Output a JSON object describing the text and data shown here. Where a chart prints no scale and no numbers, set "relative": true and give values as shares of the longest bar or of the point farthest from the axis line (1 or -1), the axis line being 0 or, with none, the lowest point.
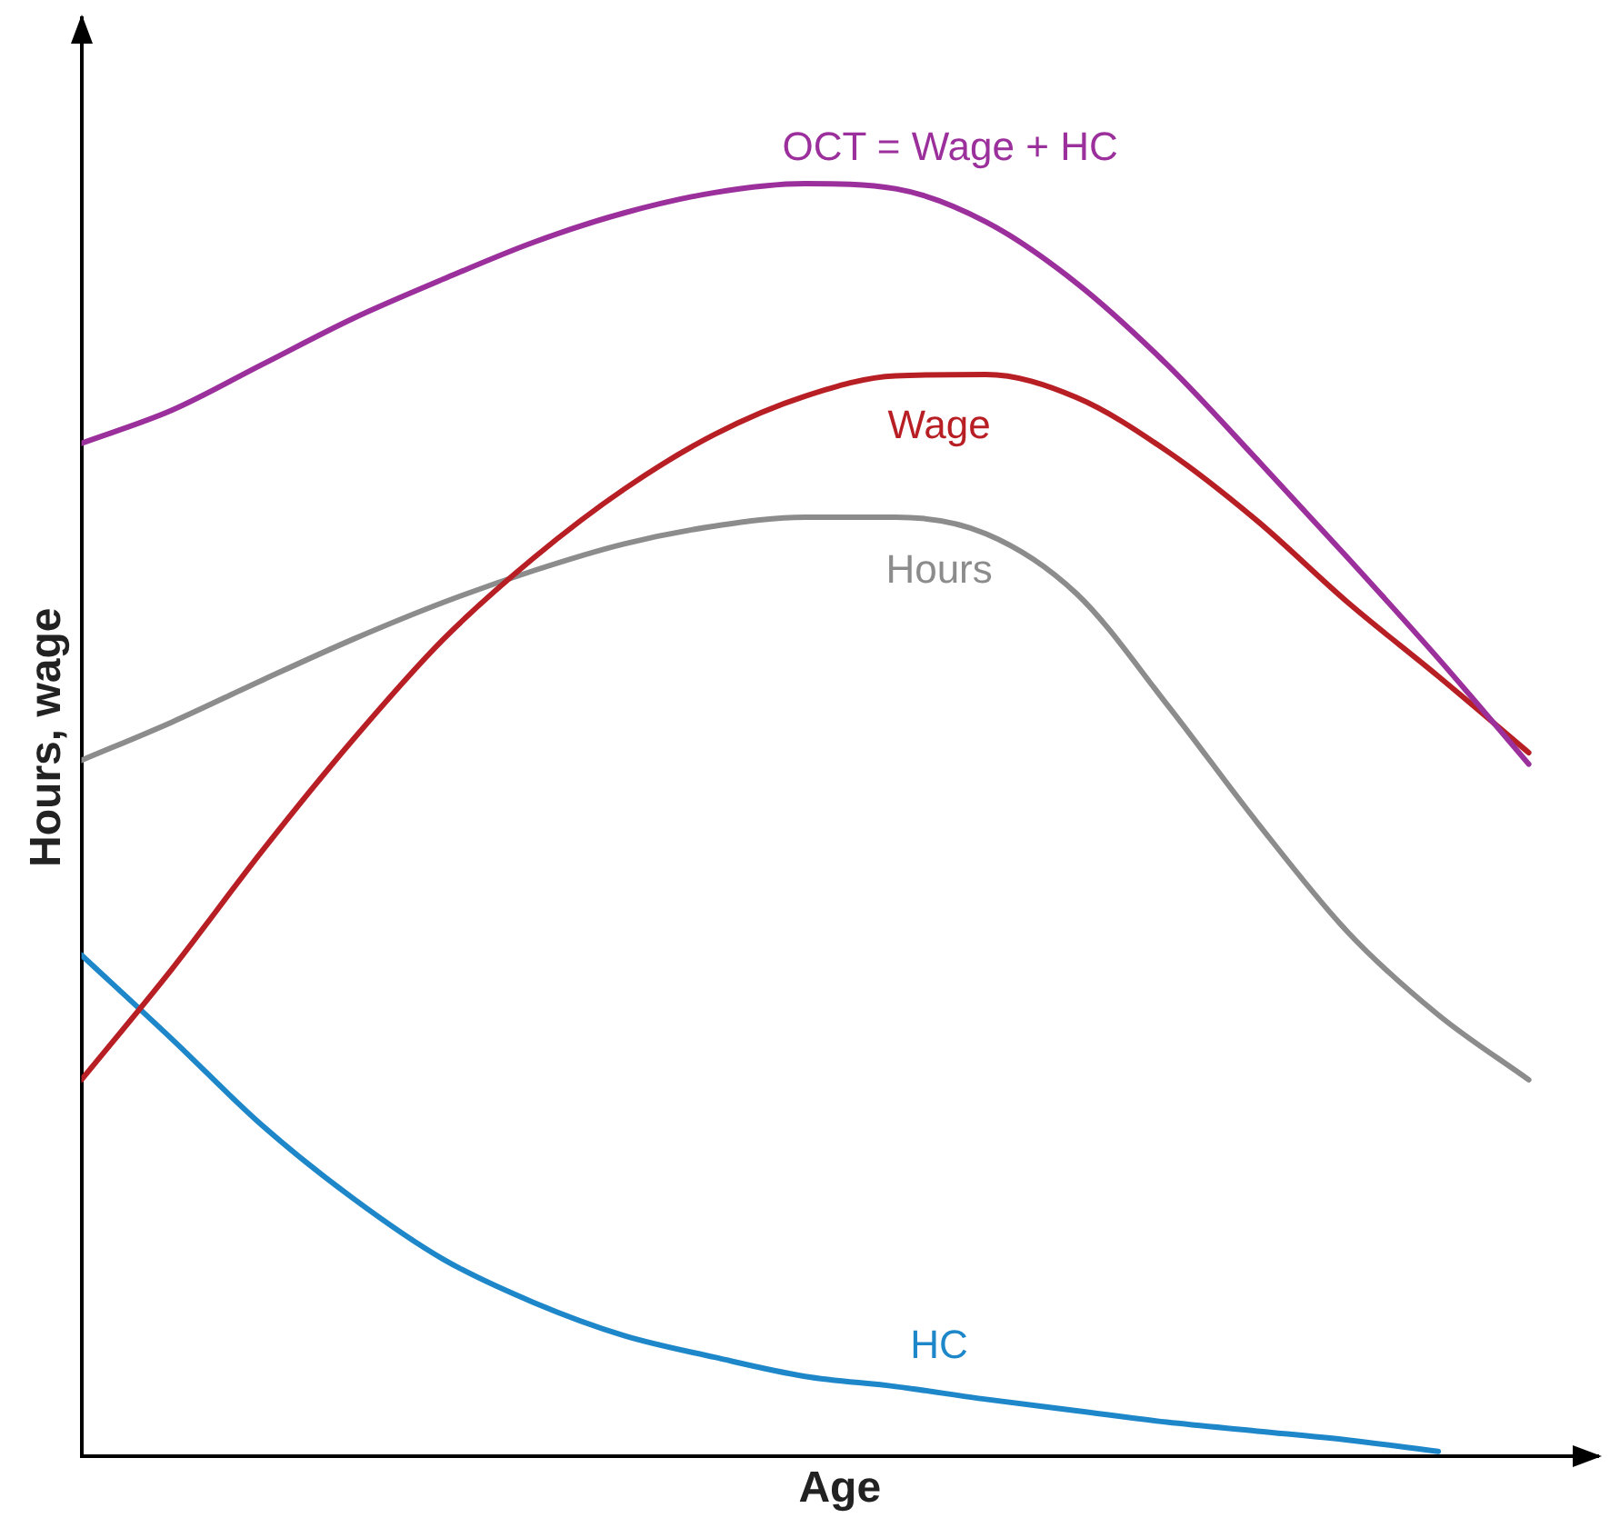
{
  "chart_data": {
    "type": "line",
    "relative": true,
    "xlabel": "Age",
    "ylabel": "Hours, wage",
    "legend": false,
    "grid": false,
    "marker": "none",
    "line_style": "solid",
    "categories": [
      null,
      null,
      null,
      null,
      null,
      null,
      null,
      null,
      null,
      null,
      null,
      null,
      null,
      null,
      null,
      null,
      null
    ],
    "series": [
      {
        "name": "OCT = Wage + HC",
        "color": "#9b2f9b",
        "values": [
          0.796,
          0.822,
          0.858,
          0.894,
          0.925,
          0.954,
          0.977,
          0.993,
          1,
          0.996,
          0.97,
          0.922,
          0.858,
          0.783,
          0.706,
          0.627,
          0.544
        ]
      },
      {
        "name": "Wage",
        "color": "#b81f25",
        "values": [
          0.296,
          0.383,
          0.476,
          0.563,
          0.642,
          0.706,
          0.76,
          0.803,
          0.833,
          0.849,
          0.85,
          0.832,
          0.79,
          0.735,
          0.671,
          0.613,
          0.553
        ]
      },
      {
        "name": "Hours",
        "color": "#8c8c8c",
        "values": [
          0.547,
          0.577,
          0.61,
          0.642,
          0.671,
          0.696,
          0.717,
          0.731,
          0.738,
          0.738,
          0.725,
          0.678,
          0.591,
          0.498,
          0.412,
          0.347,
          0.296
        ]
      },
      {
        "name": "HC",
        "color": "#1d87c9",
        "values": [
          0.394,
          0.328,
          0.26,
          0.203,
          0.155,
          0.121,
          0.095,
          0.078,
          0.063,
          0.055,
          0.045,
          0.036,
          0.027,
          0.02,
          0.013,
          0.004,
          null
        ]
      }
    ]
  }
}
